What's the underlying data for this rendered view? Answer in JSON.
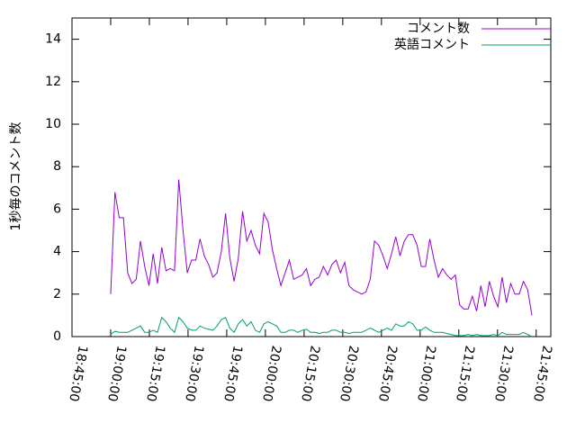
{
  "chart_data": {
    "type": "line",
    "ylabel": "1秒毎のコメント数",
    "x": [
      68400,
      68499,
      68598,
      68697,
      68796,
      68895,
      68994,
      69093,
      69192,
      69291,
      69390,
      69489,
      69588,
      69687,
      69786,
      69885,
      69984,
      70083,
      70182,
      70281,
      70380,
      70479,
      70578,
      70677,
      70776,
      70875,
      70974,
      71073,
      71172,
      71271,
      71370,
      71469,
      71568,
      71667,
      71766,
      71865,
      71964,
      72063,
      72162,
      72261,
      72360,
      72459,
      72558,
      72657,
      72756,
      72855,
      72954,
      73053,
      73152,
      73251,
      73350,
      73449,
      73548,
      73647,
      73746,
      73845,
      73944,
      74043,
      74142,
      74241,
      74340,
      74439,
      74538,
      74637,
      74736,
      74835,
      74934,
      75033,
      75132,
      75231,
      75330,
      75429,
      75528,
      75627,
      75726,
      75825,
      75924,
      76023,
      76122,
      76221,
      76320,
      76419,
      76518,
      76617,
      76716,
      76815,
      76914,
      77013,
      77112,
      77211,
      77310,
      77409,
      77508,
      77607,
      77706,
      77805,
      77904,
      78003,
      78102,
      78201
    ],
    "series": [
      {
        "name": "コメント数",
        "color": "#9400d3",
        "values": [
          2.0,
          6.8,
          5.6,
          5.6,
          3.0,
          2.5,
          2.7,
          4.5,
          3.3,
          2.4,
          3.9,
          2.5,
          4.2,
          3.1,
          3.2,
          3.1,
          7.4,
          5.0,
          3.0,
          3.6,
          3.6,
          4.6,
          3.8,
          3.4,
          2.8,
          3.0,
          4.0,
          5.8,
          3.7,
          2.6,
          3.7,
          5.9,
          4.5,
          5.0,
          4.3,
          3.9,
          5.8,
          5.4,
          4.1,
          3.2,
          2.4,
          3.0,
          3.6,
          2.7,
          2.8,
          2.9,
          3.2,
          2.4,
          2.7,
          2.8,
          3.3,
          2.9,
          3.4,
          3.6,
          3.0,
          3.5,
          2.4,
          2.2,
          2.1,
          2.0,
          2.1,
          2.7,
          4.5,
          4.3,
          3.8,
          3.2,
          3.9,
          4.7,
          3.8,
          4.5,
          4.8,
          4.8,
          4.3,
          3.3,
          3.3,
          4.6,
          3.6,
          2.8,
          3.2,
          2.9,
          2.7,
          2.9,
          1.5,
          1.3,
          1.3,
          1.9,
          1.2,
          2.4,
          1.4,
          2.6,
          1.9,
          1.4,
          2.8,
          1.6,
          2.5,
          2.0,
          2.0,
          2.6,
          2.2,
          1.0
        ]
      },
      {
        "name": "英語コメント",
        "color": "#009e73",
        "values": [
          0.1,
          0.25,
          0.2,
          0.2,
          0.2,
          0.3,
          0.4,
          0.5,
          0.2,
          0.2,
          0.3,
          0.2,
          0.9,
          0.7,
          0.4,
          0.2,
          0.9,
          0.7,
          0.4,
          0.3,
          0.3,
          0.5,
          0.4,
          0.35,
          0.3,
          0.5,
          0.8,
          0.9,
          0.4,
          0.2,
          0.6,
          0.8,
          0.5,
          0.7,
          0.3,
          0.2,
          0.6,
          0.7,
          0.6,
          0.5,
          0.2,
          0.2,
          0.3,
          0.3,
          0.2,
          0.3,
          0.35,
          0.2,
          0.2,
          0.15,
          0.2,
          0.2,
          0.3,
          0.3,
          0.2,
          0.2,
          0.15,
          0.2,
          0.2,
          0.2,
          0.3,
          0.4,
          0.3,
          0.2,
          0.3,
          0.4,
          0.3,
          0.6,
          0.5,
          0.5,
          0.7,
          0.6,
          0.3,
          0.3,
          0.45,
          0.3,
          0.2,
          0.2,
          0.2,
          0.15,
          0.1,
          0.05,
          0.05,
          0.05,
          0.1,
          0.05,
          0.1,
          0.05,
          0.05,
          0.05,
          0.1,
          0.05,
          0.2,
          0.1,
          0.1,
          0.1,
          0.1,
          0.2,
          0.1,
          0
        ]
      }
    ],
    "xlim": [
      67500,
      78640
    ],
    "xticks": [
      {
        "value": 67500,
        "label": "18:45:00"
      },
      {
        "value": 68400,
        "label": "19:00:00"
      },
      {
        "value": 69300,
        "label": "19:15:00"
      },
      {
        "value": 70200,
        "label": "19:30:00"
      },
      {
        "value": 71100,
        "label": "19:45:00"
      },
      {
        "value": 72000,
        "label": "20:00:00"
      },
      {
        "value": 72900,
        "label": "20:15:00"
      },
      {
        "value": 73800,
        "label": "20:30:00"
      },
      {
        "value": 74700,
        "label": "20:45:00"
      },
      {
        "value": 75600,
        "label": "21:00:00"
      },
      {
        "value": 76500,
        "label": "21:15:00"
      },
      {
        "value": 77400,
        "label": "21:30:00"
      },
      {
        "value": 78300,
        "label": "21:45:00"
      }
    ],
    "ylim": [
      0,
      15
    ],
    "yticks": [
      0,
      2,
      4,
      6,
      8,
      10,
      12,
      14
    ],
    "legend": "top-right",
    "grid": false
  }
}
